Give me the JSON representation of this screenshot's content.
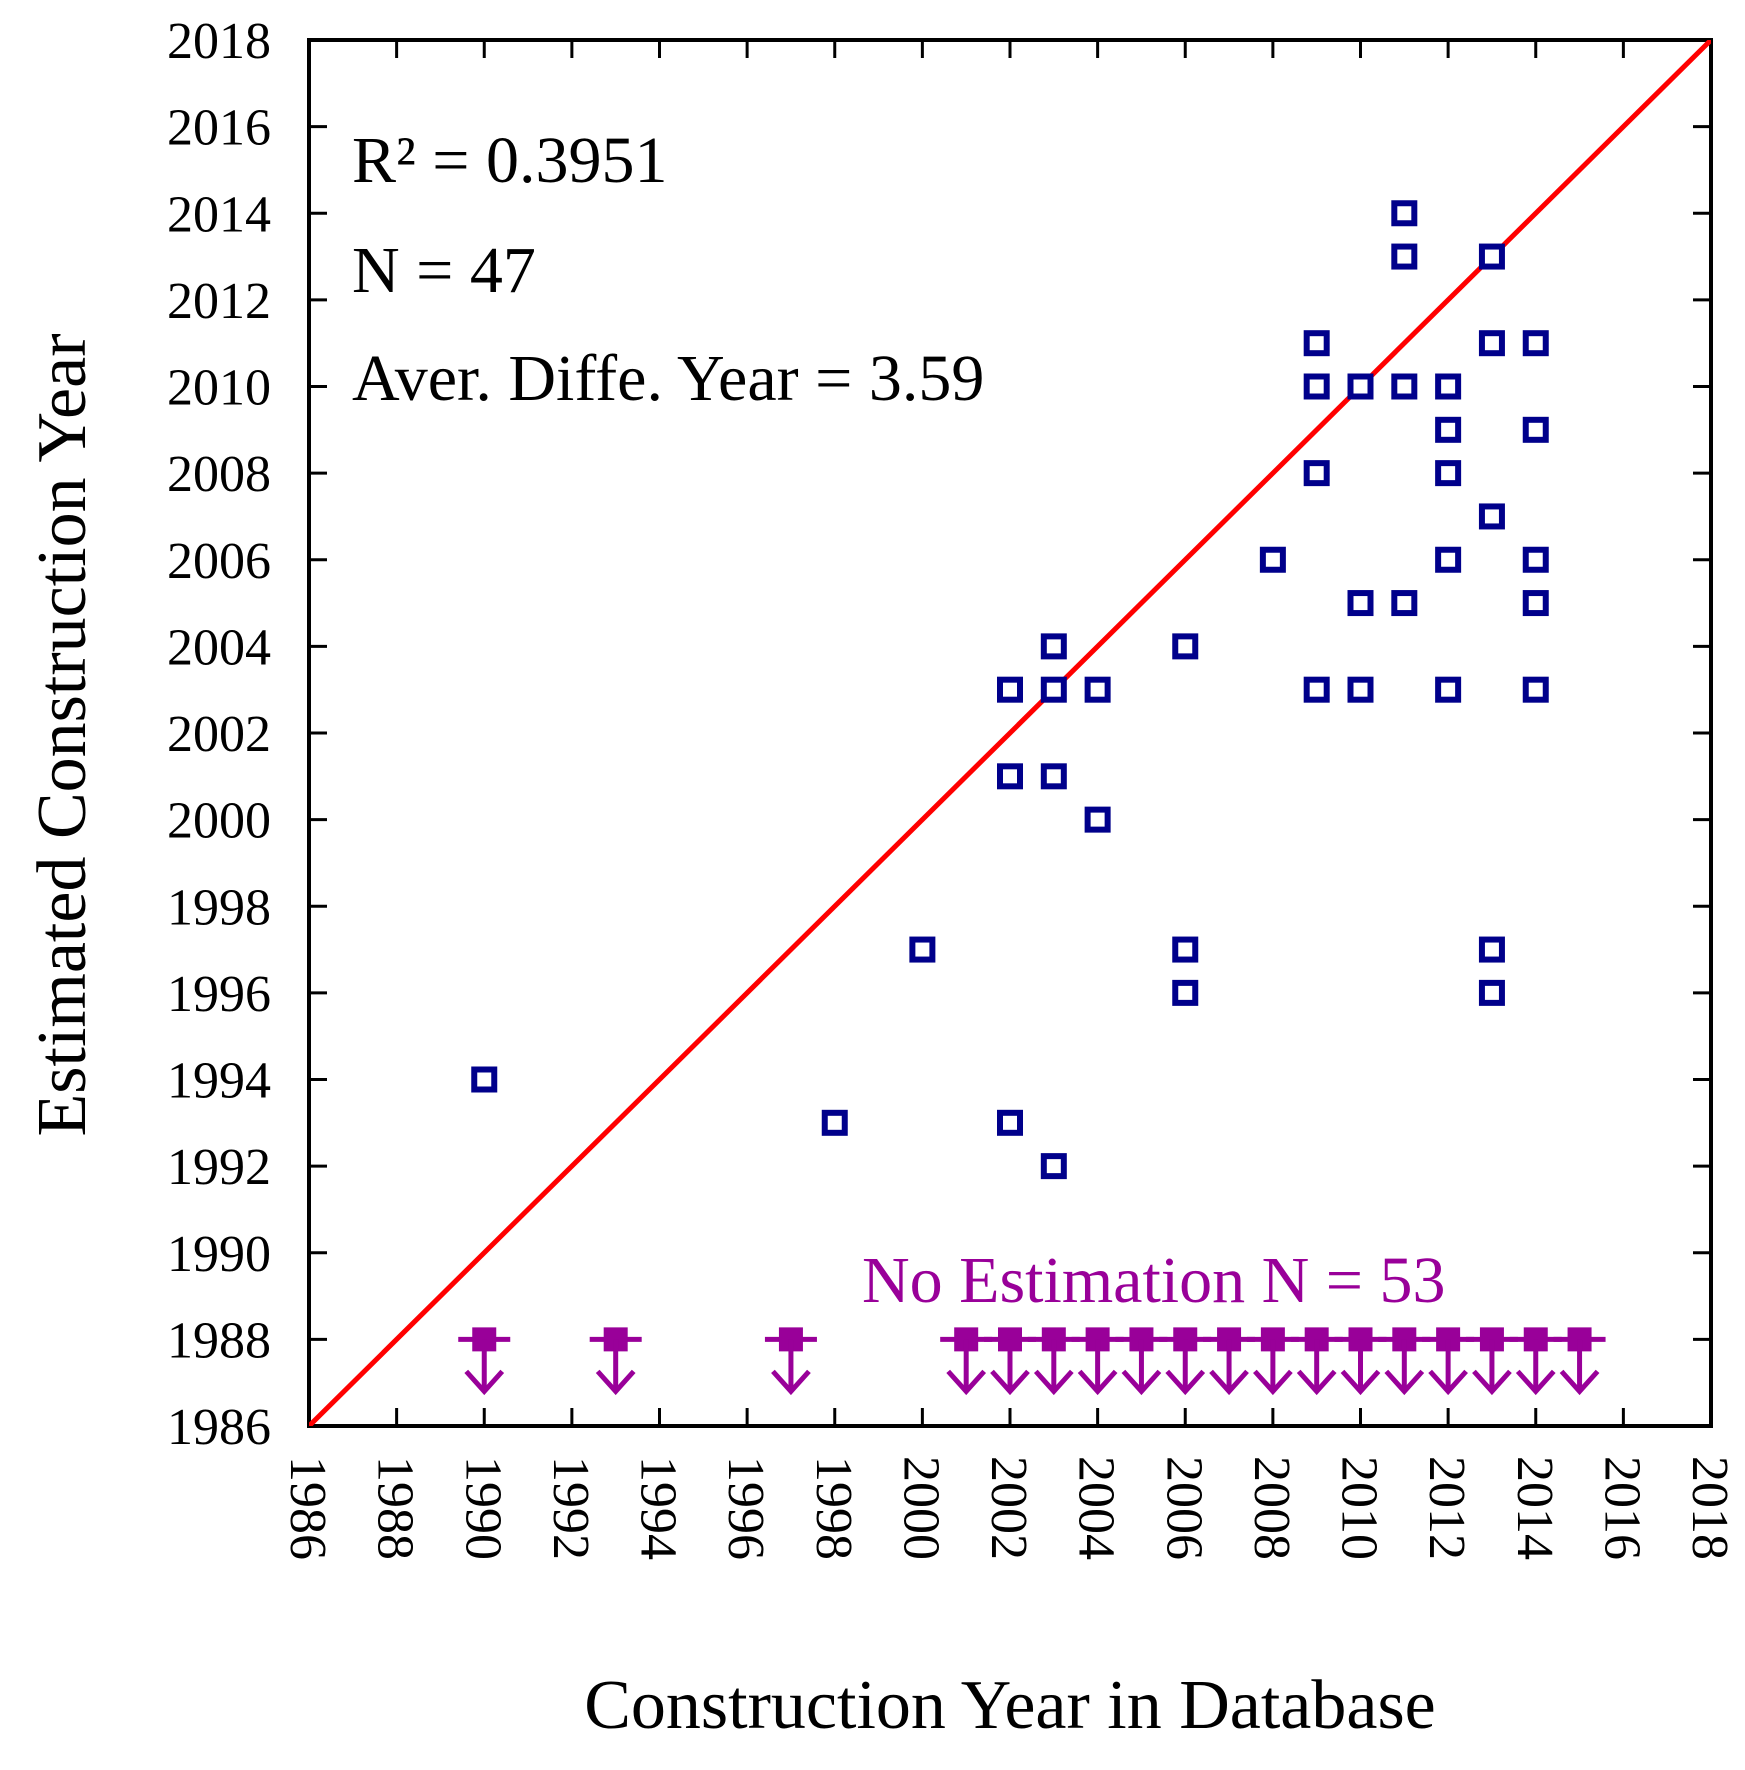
{
  "chart_data": {
    "type": "scatter",
    "xlabel": "Construction Year in Database",
    "ylabel": "Estimated Construction Year",
    "xlim": [
      1986,
      2018
    ],
    "ylim": [
      1986,
      2018
    ],
    "xticks": [
      "1986",
      "1988",
      "1990",
      "1992",
      "1994",
      "1996",
      "1998",
      "2000",
      "2002",
      "2004",
      "2006",
      "2008",
      "2010",
      "2012",
      "2014",
      "2016",
      "2018"
    ],
    "yticks": [
      "1986",
      "1988",
      "1990",
      "1992",
      "1994",
      "1996",
      "1998",
      "2000",
      "2002",
      "2004",
      "2006",
      "2008",
      "2010",
      "2012",
      "2014",
      "2016",
      "2018"
    ],
    "annotations": {
      "r2": "R² = 0.3951",
      "n": "N = 47",
      "avg_diff": "Aver. Diffe. Year = 3.59",
      "no_estimation": "No Estimation  N = 53"
    },
    "identity_line": {
      "from": [
        1986,
        1986
      ],
      "to": [
        2018,
        2018
      ],
      "color": "#ff0000"
    },
    "series": [
      {
        "name": "Estimated",
        "marker": "open-square",
        "color": "#00008b",
        "points": [
          [
            1990,
            1994
          ],
          [
            1998,
            1993
          ],
          [
            2000,
            1997
          ],
          [
            2002,
            2003
          ],
          [
            2002,
            2001
          ],
          [
            2002,
            1993
          ],
          [
            2003,
            2004
          ],
          [
            2003,
            2003
          ],
          [
            2003,
            2001
          ],
          [
            2003,
            1992
          ],
          [
            2004,
            2003
          ],
          [
            2004,
            2000
          ],
          [
            2006,
            2004
          ],
          [
            2006,
            1997
          ],
          [
            2006,
            1996
          ],
          [
            2008,
            2006
          ],
          [
            2009,
            2011
          ],
          [
            2009,
            2010
          ],
          [
            2009,
            2008
          ],
          [
            2009,
            2003
          ],
          [
            2010,
            2010
          ],
          [
            2010,
            2005
          ],
          [
            2010,
            2003
          ],
          [
            2011,
            2014
          ],
          [
            2011,
            2013
          ],
          [
            2011,
            2010
          ],
          [
            2011,
            2005
          ],
          [
            2012,
            2010
          ],
          [
            2012,
            2009
          ],
          [
            2012,
            2008
          ],
          [
            2012,
            2006
          ],
          [
            2012,
            2003
          ],
          [
            2013,
            2013
          ],
          [
            2013,
            2011
          ],
          [
            2013,
            2007
          ],
          [
            2013,
            1997
          ],
          [
            2013,
            1996
          ],
          [
            2014,
            2011
          ],
          [
            2014,
            2009
          ],
          [
            2014,
            2006
          ],
          [
            2014,
            2005
          ],
          [
            2014,
            2003
          ]
        ]
      },
      {
        "name": "No Estimation",
        "marker": "filled-square-down-arrow",
        "color": "#990099",
        "y": 1988,
        "x": [
          1990,
          1993,
          1997,
          2001,
          2002,
          2003,
          2004,
          2005,
          2006,
          2007,
          2008,
          2009,
          2010,
          2011,
          2012,
          2013,
          2014,
          2015
        ]
      }
    ]
  }
}
